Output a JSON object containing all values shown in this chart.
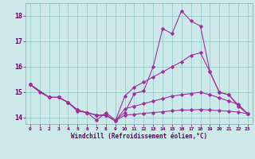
{
  "xlabel": "Windchill (Refroidissement éolien,°C)",
  "bg_color": "#cce8e8",
  "line_color": "#993399",
  "grid_color": "#99cccc",
  "xlim": [
    -0.5,
    23.5
  ],
  "ylim": [
    13.75,
    18.5
  ],
  "xticks": [
    0,
    1,
    2,
    3,
    4,
    5,
    6,
    7,
    8,
    9,
    10,
    11,
    12,
    13,
    14,
    15,
    16,
    17,
    18,
    19,
    20,
    21,
    22,
    23
  ],
  "yticks": [
    14,
    15,
    16,
    17,
    18
  ],
  "line1_x": [
    0,
    1,
    2,
    3,
    4,
    5,
    6,
    7,
    8,
    9,
    10,
    11,
    12,
    13,
    14,
    15,
    16,
    17,
    18,
    19,
    20,
    21,
    22,
    23
  ],
  "line1_y": [
    15.3,
    15.0,
    14.8,
    14.8,
    14.6,
    14.25,
    14.2,
    13.9,
    14.2,
    13.9,
    14.2,
    14.95,
    15.05,
    16.0,
    17.5,
    17.3,
    18.2,
    17.8,
    17.6,
    15.8,
    15.0,
    14.9,
    14.45,
    14.15
  ],
  "line2_x": [
    0,
    2,
    3,
    4,
    5,
    6,
    7,
    8,
    9,
    10,
    11,
    12,
    13,
    14,
    15,
    16,
    17,
    18,
    19,
    20,
    21,
    22,
    23
  ],
  "line2_y": [
    15.3,
    14.8,
    14.8,
    14.6,
    14.3,
    14.2,
    14.1,
    14.1,
    13.87,
    14.85,
    15.2,
    15.4,
    15.6,
    15.8,
    16.0,
    16.2,
    16.45,
    16.55,
    15.8,
    15.0,
    14.9,
    14.5,
    14.15
  ],
  "line3_x": [
    0,
    2,
    3,
    4,
    5,
    6,
    7,
    8,
    9,
    10,
    11,
    12,
    13,
    14,
    15,
    16,
    17,
    18,
    19,
    20,
    21,
    22,
    23
  ],
  "line3_y": [
    15.3,
    14.8,
    14.8,
    14.6,
    14.3,
    14.2,
    14.1,
    14.1,
    13.87,
    14.35,
    14.45,
    14.55,
    14.65,
    14.75,
    14.85,
    14.9,
    14.95,
    15.0,
    14.9,
    14.78,
    14.65,
    14.52,
    14.15
  ],
  "line4_x": [
    0,
    2,
    3,
    4,
    5,
    6,
    7,
    8,
    9,
    10,
    11,
    12,
    13,
    14,
    15,
    16,
    17,
    18,
    19,
    20,
    21,
    22,
    23
  ],
  "line4_y": [
    15.3,
    14.8,
    14.8,
    14.6,
    14.3,
    14.2,
    14.1,
    14.1,
    13.87,
    14.1,
    14.13,
    14.17,
    14.2,
    14.23,
    14.27,
    14.3,
    14.3,
    14.32,
    14.3,
    14.28,
    14.25,
    14.22,
    14.15
  ]
}
